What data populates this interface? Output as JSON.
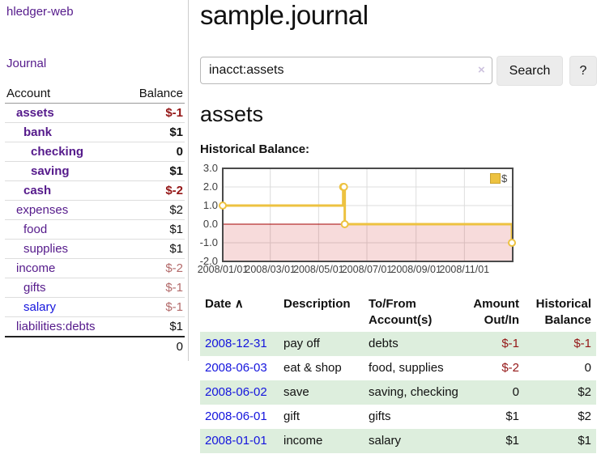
{
  "sidebar": {
    "brand": "hledger-web",
    "journal_link": "Journal",
    "accounts_table": {
      "headers": {
        "account": "Account",
        "balance": "Balance"
      },
      "rows": [
        {
          "name": "assets",
          "indent": 1,
          "bold": true,
          "balance": "$-1",
          "balance_style": "neg-strong",
          "link_color": "purple"
        },
        {
          "name": "bank",
          "indent": 2,
          "bold": true,
          "balance": "$1",
          "balance_style": "pos-strong",
          "link_color": "purple"
        },
        {
          "name": "checking",
          "indent": 3,
          "bold": true,
          "balance": "0",
          "balance_style": "pos-strong",
          "link_color": "purple"
        },
        {
          "name": "saving",
          "indent": 3,
          "bold": true,
          "balance": "$1",
          "balance_style": "pos-strong",
          "link_color": "purple"
        },
        {
          "name": "cash",
          "indent": 2,
          "bold": true,
          "balance": "$-2",
          "balance_style": "neg-strong",
          "link_color": "purple"
        },
        {
          "name": "expenses",
          "indent": 1,
          "bold": false,
          "balance": "$2",
          "balance_style": "pos",
          "link_color": "purple"
        },
        {
          "name": "food",
          "indent": 2,
          "bold": false,
          "balance": "$1",
          "balance_style": "pos",
          "link_color": "purple"
        },
        {
          "name": "supplies",
          "indent": 2,
          "bold": false,
          "balance": "$1",
          "balance_style": "pos",
          "link_color": "purple"
        },
        {
          "name": "income",
          "indent": 1,
          "bold": false,
          "balance": "$-2",
          "balance_style": "neg",
          "link_color": "purple"
        },
        {
          "name": "gifts",
          "indent": 2,
          "bold": false,
          "balance": "$-1",
          "balance_style": "neg",
          "link_color": "purple"
        },
        {
          "name": "salary",
          "indent": 2,
          "bold": false,
          "balance": "$-1",
          "balance_style": "neg",
          "link_color": "blue"
        },
        {
          "name": "liabilities:debts",
          "indent": 1,
          "bold": false,
          "balance": "$1",
          "balance_style": "pos",
          "link_color": "purple"
        }
      ],
      "total": "0"
    }
  },
  "header": {
    "title": "sample.journal"
  },
  "search": {
    "value": "inacct:assets",
    "clear_icon": "×",
    "button_label": "Search",
    "help_label": "?"
  },
  "account_page": {
    "heading": "assets",
    "chart_label": "Historical Balance:"
  },
  "chart_data": {
    "type": "line",
    "step": true,
    "title": "Historical Balance",
    "series": [
      {
        "name": "$",
        "color": "#edc240",
        "points": [
          [
            "2008-01-01",
            1
          ],
          [
            "2008-06-01",
            2
          ],
          [
            "2008-06-02",
            2
          ],
          [
            "2008-06-03",
            0
          ],
          [
            "2008-12-31",
            -1
          ]
        ]
      }
    ],
    "xrange": [
      "2008-01-01",
      "2009-01-01"
    ],
    "ylim": [
      -2,
      3
    ],
    "yticks": [
      3,
      2,
      1,
      0,
      -1,
      -2
    ],
    "ytick_labels": [
      "3.0",
      "2.0",
      "1.0",
      "0.0",
      "-1.0",
      "-2.0"
    ],
    "xticks": [
      "2008-01-01",
      "2008-03-01",
      "2008-05-01",
      "2008-07-01",
      "2008-09-01",
      "2008-11-01"
    ],
    "xtick_labels": [
      "2008/01/01",
      "2008/03/01",
      "2008/05/01",
      "2008/07/01",
      "2008/09/01",
      "2008/11/01"
    ],
    "grid": true,
    "legend_position": "top-right",
    "negative_region_color": "rgba(200,0,0,0.14)",
    "zero_line_color": "#a40000",
    "grid_color": "#dcdcdc",
    "border_color": "#4a4a4a"
  },
  "register_table": {
    "headers": {
      "date": "Date",
      "sort_icon": "∧",
      "description": "Description",
      "accounts": "To/From Account(s)",
      "amount": "Amount Out/In",
      "balance": "Historical Balance"
    },
    "rows": [
      {
        "date": "2008-12-31",
        "description": "pay off",
        "accounts": "debts",
        "amount": "$-1",
        "amount_neg": true,
        "balance": "$-1",
        "balance_neg": true,
        "green": true
      },
      {
        "date": "2008-06-03",
        "description": "eat & shop",
        "accounts": "food, supplies",
        "amount": "$-2",
        "amount_neg": true,
        "balance": "0",
        "balance_neg": false,
        "green": false
      },
      {
        "date": "2008-06-02",
        "description": "save",
        "accounts": "saving, checking",
        "amount": "0",
        "amount_neg": false,
        "balance": "$2",
        "balance_neg": false,
        "green": true
      },
      {
        "date": "2008-06-01",
        "description": "gift",
        "accounts": "gifts",
        "amount": "$1",
        "amount_neg": false,
        "balance": "$2",
        "balance_neg": false,
        "green": false
      },
      {
        "date": "2008-01-01",
        "description": "income",
        "accounts": "salary",
        "amount": "$1",
        "amount_neg": false,
        "balance": "$1",
        "balance_neg": false,
        "green": true
      }
    ]
  },
  "colors": {
    "link_purple": "#551a8b",
    "link_blue": "#1414dd",
    "negative_strong": "#941616",
    "negative_soft": "#b36a6a",
    "row_green": "#ddeedd",
    "series_gold": "#edc240"
  }
}
